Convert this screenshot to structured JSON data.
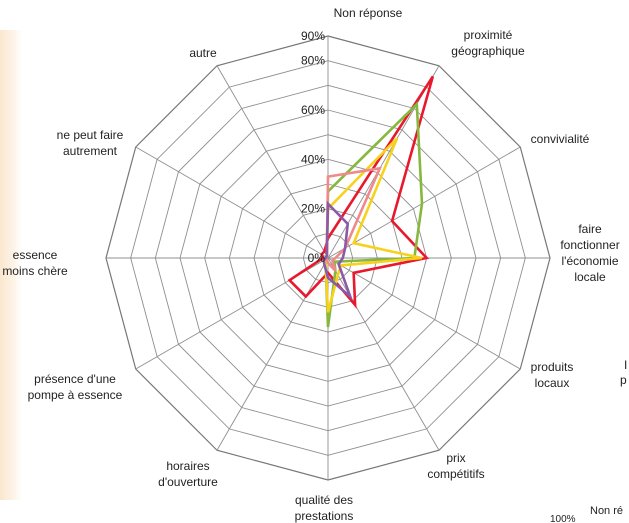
{
  "chart_data": {
    "type": "radar",
    "categories": [
      "Non réponse",
      "proximité géographique",
      "convivialité",
      "faire fonctionner l'économie locale",
      "produits locaux",
      "prix compétitifs",
      "qualité des prestations",
      "horaires d'ouverture",
      "présence d'une pompe à essence",
      "essence moins chère",
      "ne peut faire autrement",
      "autre"
    ],
    "rlim": [
      0,
      90
    ],
    "r_ticks": [
      "0%",
      "20%",
      "40%",
      "60%",
      "80%",
      "90%"
    ],
    "r_tick_values": [
      0,
      20,
      40,
      60,
      80,
      90
    ],
    "grid": true,
    "series": [
      {
        "color": "#e8192c",
        "values": [
          8,
          85,
          30,
          40,
          12,
          22,
          6,
          18,
          18,
          2,
          3,
          3
        ]
      },
      {
        "color": "#86b83e",
        "values": [
          27,
          72,
          44,
          35,
          3,
          6,
          28,
          2,
          2,
          1,
          1,
          1
        ]
      },
      {
        "color": "#f7d21c",
        "values": [
          20,
          56,
          12,
          38,
          6,
          8,
          22,
          2,
          1,
          1,
          1,
          1
        ]
      },
      {
        "color": "#f08a8a",
        "values": [
          33,
          42,
          8,
          3,
          2,
          6,
          2,
          1,
          1,
          1,
          1,
          1
        ]
      },
      {
        "color": "#8a5aa8",
        "values": [
          22,
          16,
          8,
          6,
          5,
          18,
          8,
          3,
          2,
          1,
          1,
          1
        ]
      }
    ]
  },
  "clipped_text": {
    "right_fragment_1": "I",
    "right_fragment_2": "p",
    "bottom_tick": "100%",
    "bottom_label": "Non ré"
  }
}
